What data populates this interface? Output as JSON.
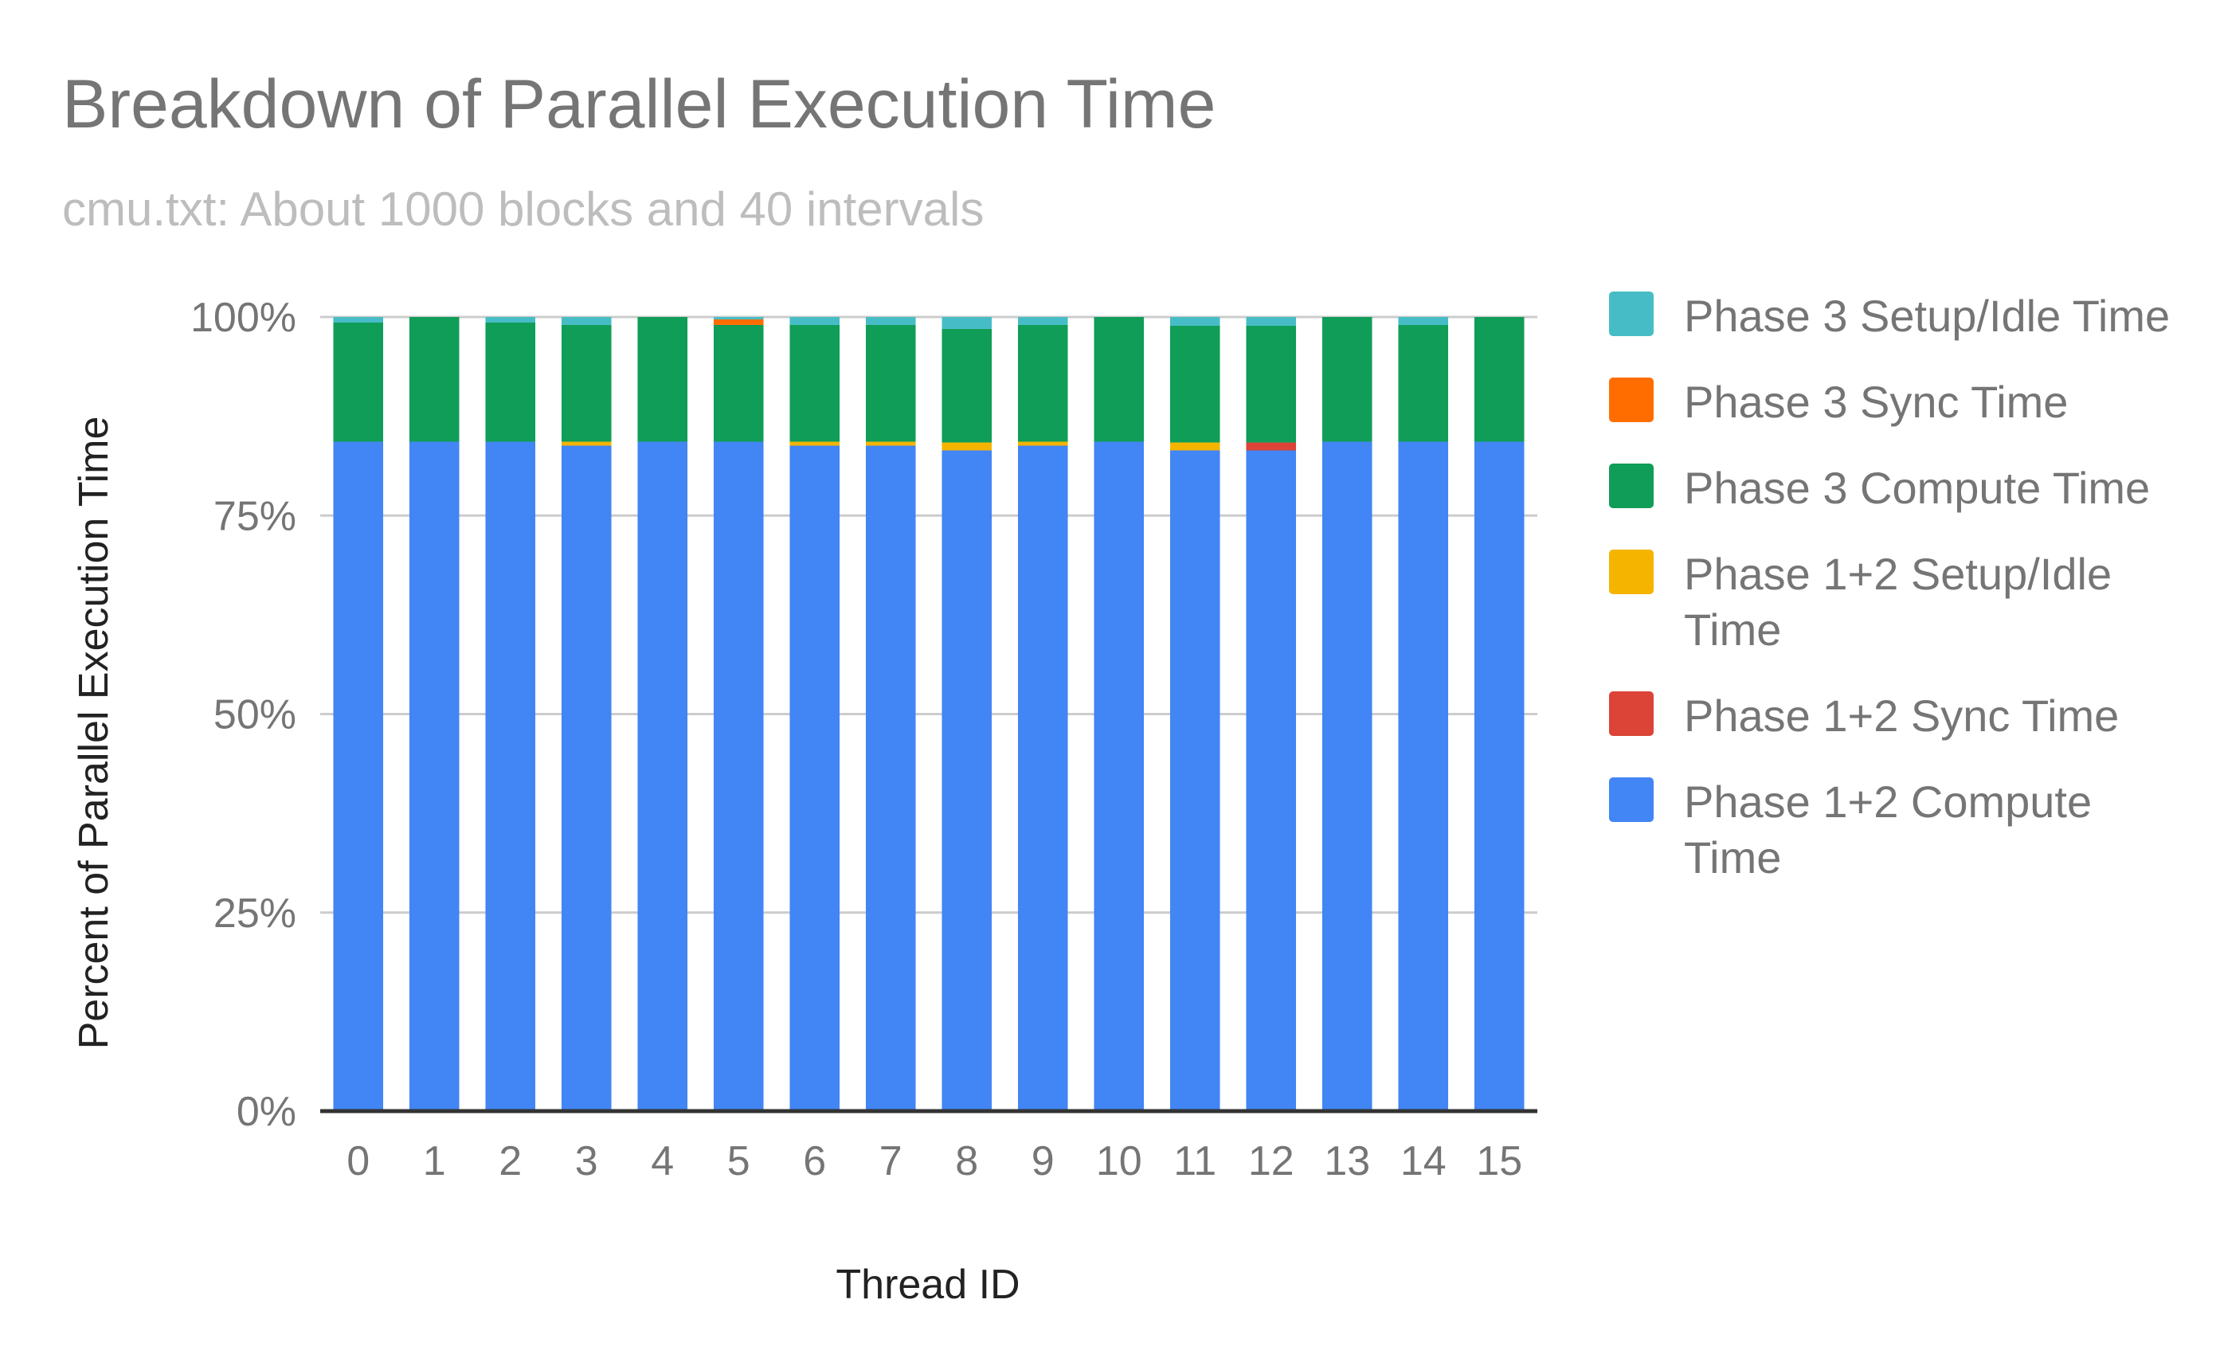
{
  "chart_data": {
    "type": "bar",
    "stacked": true,
    "stack_mode": "percent",
    "title": "Breakdown of Parallel Execution Time",
    "subtitle": "cmu.txt: About 1000 blocks and 40 intervals",
    "xlabel": "Thread ID",
    "ylabel": "Percent of Parallel Execution Time",
    "ylim": [
      0,
      100
    ],
    "yticks": [
      "0%",
      "25%",
      "50%",
      "75%",
      "100%"
    ],
    "ytick_values": [
      0,
      25,
      50,
      75,
      100
    ],
    "grid": true,
    "legend_position": "right",
    "categories": [
      "0",
      "1",
      "2",
      "3",
      "4",
      "5",
      "6",
      "7",
      "8",
      "9",
      "10",
      "11",
      "12",
      "13",
      "14",
      "15"
    ],
    "series": [
      {
        "name": "Phase 1+2 Compute Time",
        "color": "#4285F4",
        "values": [
          84.3,
          84.3,
          84.3,
          83.8,
          84.3,
          84.3,
          83.8,
          83.8,
          83.2,
          83.8,
          84.3,
          83.2,
          83.2,
          84.3,
          84.3,
          84.3
        ]
      },
      {
        "name": "Phase 1+2 Sync Time",
        "color": "#DB4437",
        "values": [
          0,
          0,
          0,
          0,
          0,
          0,
          0,
          0,
          0,
          0,
          0,
          0,
          1.0,
          0,
          0,
          0
        ]
      },
      {
        "name": "Phase 1+2 Setup/Idle Time",
        "color": "#F4B400",
        "values": [
          0,
          0,
          0,
          0.5,
          0,
          0,
          0.5,
          0.5,
          1.0,
          0.5,
          0,
          1.0,
          0,
          0,
          0,
          0
        ]
      },
      {
        "name": "Phase 3 Compute Time",
        "color": "#0F9D58",
        "values": [
          15.0,
          15.7,
          15.0,
          14.7,
          15.7,
          14.7,
          14.7,
          14.7,
          14.3,
          14.7,
          15.7,
          14.7,
          14.7,
          15.7,
          14.7,
          15.7
        ]
      },
      {
        "name": "Phase 3 Sync Time",
        "color": "#FF6D00",
        "values": [
          0,
          0,
          0,
          0,
          0,
          0.7,
          0,
          0,
          0,
          0,
          0,
          0,
          0,
          0,
          0,
          0
        ]
      },
      {
        "name": "Phase 3 Setup/Idle Time",
        "color": "#46BDC6",
        "values": [
          0.7,
          0,
          0.7,
          1.0,
          0,
          0.3,
          1.0,
          1.0,
          1.5,
          1.0,
          0,
          1.1,
          1.1,
          0,
          1.0,
          0
        ]
      }
    ]
  },
  "legend": {
    "items": [
      {
        "label": "Phase 3 Setup/Idle Time",
        "color": "#46BDC6"
      },
      {
        "label": "Phase 3 Sync Time",
        "color": "#FF6D00"
      },
      {
        "label": "Phase 3 Compute Time",
        "color": "#0F9D58"
      },
      {
        "label": "Phase 1+2 Setup/Idle Time",
        "color": "#F4B400"
      },
      {
        "label": "Phase 1+2 Sync Time",
        "color": "#DB4437"
      },
      {
        "label": "Phase 1+2 Compute Time",
        "color": "#4285F4"
      }
    ]
  }
}
